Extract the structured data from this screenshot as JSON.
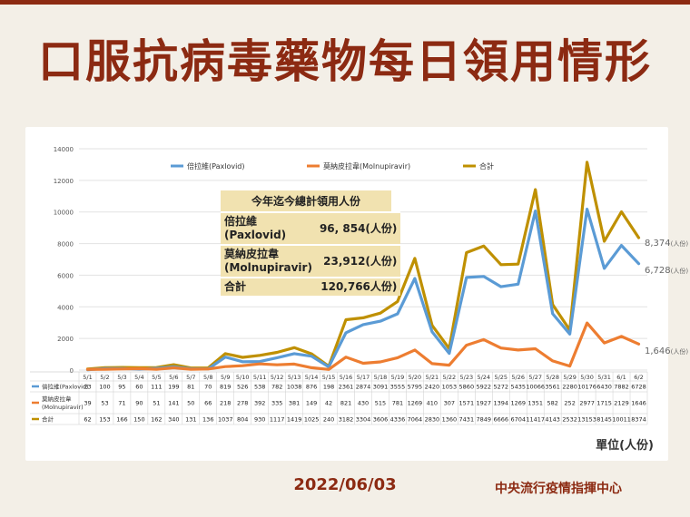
{
  "title": "口服抗病毒藥物每日領用情形",
  "chart_data": {
    "type": "line",
    "x": [
      "5/1",
      "5/2",
      "5/3",
      "5/4",
      "5/5",
      "5/6",
      "5/7",
      "5/8",
      "5/9",
      "5/10",
      "5/11",
      "5/12",
      "5/13",
      "5/14",
      "5/15",
      "5/16",
      "5/17",
      "5/18",
      "5/19",
      "5/20",
      "5/21",
      "5/22",
      "5/23",
      "5/24",
      "5/25",
      "5/26",
      "5/27",
      "5/28",
      "5/29",
      "5/30",
      "5/31",
      "6/1",
      "6/2"
    ],
    "ylim": [
      0,
      14000
    ],
    "yticks": [
      0,
      2000,
      4000,
      6000,
      8000,
      10000,
      12000,
      14000
    ],
    "series": [
      {
        "name": "倍拉維(Paxlovid)",
        "table_label": "倍拉維(Paxlovid)",
        "color": "#5b9bd5",
        "values": [
          23,
          100,
          95,
          60,
          111,
          199,
          81,
          70,
          819,
          526,
          538,
          782,
          1038,
          876,
          198,
          2361,
          2874,
          3091,
          3555,
          5795,
          2420,
          1053,
          5860,
          5922,
          5272,
          5435,
          10066,
          3561,
          2280,
          10176,
          6430,
          7882,
          6728
        ]
      },
      {
        "name": "莫納皮拉韋(Molnupiravir)",
        "table_label": "莫納皮拉韋\n(Molnupiravir)",
        "color": "#ed7d31",
        "values": [
          39,
          53,
          71,
          90,
          51,
          141,
          50,
          66,
          218,
          278,
          392,
          335,
          381,
          149,
          42,
          821,
          430,
          515,
          781,
          1269,
          410,
          307,
          1571,
          1927,
          1394,
          1269,
          1351,
          582,
          252,
          2977,
          1715,
          2129,
          1646
        ]
      },
      {
        "name": "合計",
        "table_label": "合計",
        "color": "#bf9000",
        "values": [
          62,
          153,
          166,
          150,
          162,
          340,
          131,
          136,
          1037,
          804,
          930,
          1117,
          1419,
          1025,
          240,
          3182,
          3304,
          3606,
          4336,
          7064,
          2830,
          1360,
          7431,
          7849,
          6666,
          6704,
          11417,
          4143,
          2532,
          13153,
          8145,
          10011,
          8374
        ]
      }
    ],
    "end_labels": [
      "8,374(人份)",
      "6,728(人份)",
      "1,646(人份)"
    ]
  },
  "summary": {
    "heading": "今年迄今總計領用人份",
    "rows": [
      {
        "label": "倍拉維\n(Paxlovid)",
        "value": "96, 854(人份)"
      },
      {
        "label": "莫納皮拉韋\n(Molnupiravir)",
        "value": "23,912(人份)"
      },
      {
        "label": "合計",
        "value": "120,766人份)"
      }
    ]
  },
  "unit": "單位(人份)",
  "date": "2022/06/03",
  "org": "中央流行疫情指揮中心"
}
